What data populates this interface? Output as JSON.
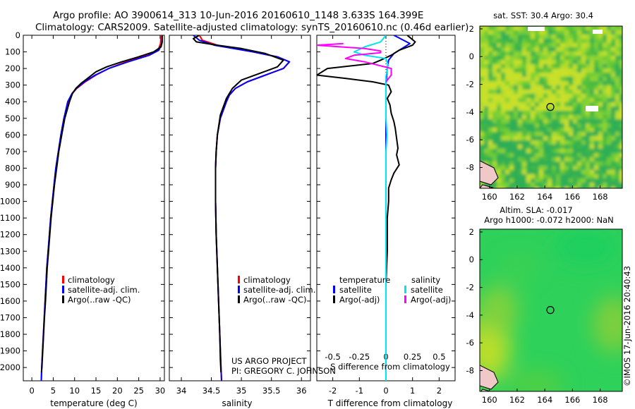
{
  "header": {
    "line1": "Argo profile: AO 3900614_313 10-Jun-2016 20160610_1148 3.633S 164.399E",
    "line2": "Climatology: CARS2009. Satellite-adjusted climatology: synTS_20160610.nc (0.46d earlier)"
  },
  "sidebar_text": "©IMOS 17-Jun-2016 20:40:43",
  "credit": {
    "line1": "US ARGO PROJECT",
    "line2": "PI: GREGORY C. JOHNSON"
  },
  "colors": {
    "climatology": "#ff0000",
    "satellite": "#0000ff",
    "argo": "#000000",
    "sat_salinity": "#00e5ee",
    "argo_salinity": "#ff00ff"
  },
  "chart_data": [
    {
      "id": "temperature",
      "type": "line",
      "xlabel": "temperature (deg C)",
      "ylabel": "",
      "xlim": [
        -2,
        31
      ],
      "ylim": [
        2080,
        0
      ],
      "xticks": [
        0,
        5,
        10,
        15,
        20,
        25,
        30
      ],
      "yticks": [
        0,
        100,
        200,
        300,
        400,
        500,
        600,
        700,
        800,
        900,
        1000,
        1100,
        1200,
        1300,
        1400,
        1500,
        1600,
        1700,
        1800,
        1900,
        2000
      ],
      "legend": {
        "position": "lower-center",
        "entries": [
          "climatology",
          "satellite-adj. clim.",
          "Argo(..raw -QC)"
        ]
      },
      "series": [
        {
          "name": "climatology",
          "color": "#ff0000",
          "points": [
            [
              30.2,
              0
            ],
            [
              30.1,
              50
            ],
            [
              29.5,
              90
            ],
            [
              27,
              120
            ],
            [
              22,
              160
            ],
            [
              18,
              200
            ],
            [
              15,
              240
            ],
            [
              12.5,
              280
            ],
            [
              10.5,
              320
            ],
            [
              9.5,
              350
            ],
            [
              8.5,
              400
            ],
            [
              7.5,
              500
            ],
            [
              6.8,
              600
            ],
            [
              6.2,
              700
            ],
            [
              5.6,
              800
            ],
            [
              5.2,
              900
            ],
            [
              4.8,
              1000
            ],
            [
              4.4,
              1100
            ],
            [
              4.1,
              1200
            ],
            [
              3.8,
              1300
            ],
            [
              3.5,
              1400
            ],
            [
              3.3,
              1500
            ],
            [
              3.1,
              1600
            ],
            [
              2.9,
              1700
            ],
            [
              2.7,
              1800
            ],
            [
              2.5,
              1900
            ],
            [
              2.3,
              2000
            ],
            [
              2.2,
              2080
            ]
          ]
        },
        {
          "name": "satellite-adj. clim.",
          "color": "#0000ff",
          "points": [
            [
              30.5,
              0
            ],
            [
              30.4,
              50
            ],
            [
              29.7,
              90
            ],
            [
              27.5,
              120
            ],
            [
              22.5,
              160
            ],
            [
              18,
              200
            ],
            [
              14.8,
              240
            ],
            [
              12.3,
              280
            ],
            [
              10.4,
              320
            ],
            [
              9.4,
              350
            ],
            [
              8.4,
              400
            ],
            [
              7.5,
              500
            ],
            [
              6.8,
              600
            ],
            [
              6.2,
              700
            ],
            [
              5.6,
              800
            ],
            [
              5.2,
              900
            ],
            [
              4.8,
              1000
            ],
            [
              4.4,
              1100
            ],
            [
              4.1,
              1200
            ],
            [
              3.8,
              1300
            ],
            [
              3.5,
              1400
            ],
            [
              3.3,
              1500
            ],
            [
              3.1,
              1600
            ],
            [
              2.9,
              1700
            ],
            [
              2.7,
              1800
            ],
            [
              2.5,
              1900
            ],
            [
              2.3,
              2000
            ],
            [
              2.2,
              2080
            ]
          ]
        },
        {
          "name": "Argo(..raw -QC)",
          "color": "#000000",
          "points": [
            [
              30.5,
              0
            ],
            [
              30.5,
              40
            ],
            [
              30.2,
              70
            ],
            [
              28.5,
              100
            ],
            [
              25,
              130
            ],
            [
              21,
              160
            ],
            [
              17.5,
              190
            ],
            [
              15,
              220
            ],
            [
              13,
              260
            ],
            [
              11.5,
              290
            ],
            [
              10.3,
              320
            ],
            [
              9.5,
              350
            ],
            [
              8.8,
              400
            ],
            [
              7.7,
              500
            ],
            [
              7,
              600
            ],
            [
              6.3,
              700
            ],
            [
              5.8,
              800
            ],
            [
              5.3,
              900
            ],
            [
              4.9,
              1000
            ],
            [
              4.5,
              1100
            ],
            [
              4.2,
              1200
            ],
            [
              3.9,
              1300
            ],
            [
              3.6,
              1400
            ],
            [
              3.4,
              1500
            ],
            [
              3.2,
              1600
            ],
            [
              2.95,
              1700
            ],
            [
              2.75,
              1800
            ],
            [
              2.55,
              1900
            ],
            [
              2.35,
              2000
            ],
            [
              2.25,
              2030
            ]
          ]
        }
      ]
    },
    {
      "id": "salinity",
      "type": "line",
      "xlabel": "salinity",
      "ylabel": "",
      "xlim": [
        33.8,
        36.15
      ],
      "ylim": [
        2080,
        0
      ],
      "xticks": [
        34,
        34.5,
        35,
        35.5,
        36
      ],
      "legend": {
        "position": "lower-center",
        "entries": [
          "climatology",
          "satellite-adj. clim.",
          "Argo(..raw -QC)"
        ]
      },
      "series": [
        {
          "name": "climatology",
          "color": "#ff0000",
          "points": [
            [
              34.3,
              0
            ],
            [
              34.35,
              30
            ],
            [
              34.6,
              60
            ],
            [
              35.2,
              100
            ],
            [
              35.6,
              130
            ],
            [
              35.8,
              160
            ],
            [
              35.7,
              200
            ],
            [
              35.4,
              240
            ],
            [
              35.1,
              280
            ],
            [
              34.9,
              320
            ],
            [
              34.8,
              360
            ],
            [
              34.75,
              400
            ],
            [
              34.65,
              500
            ],
            [
              34.6,
              600
            ],
            [
              34.58,
              700
            ],
            [
              34.57,
              800
            ],
            [
              34.57,
              1000
            ],
            [
              34.58,
              1200
            ],
            [
              34.6,
              1400
            ],
            [
              34.62,
              1600
            ],
            [
              34.64,
              1800
            ],
            [
              34.66,
              2000
            ],
            [
              34.67,
              2080
            ]
          ]
        },
        {
          "name": "satellite-adj. clim.",
          "color": "#0000ff",
          "points": [
            [
              34.2,
              0
            ],
            [
              34.3,
              30
            ],
            [
              34.55,
              60
            ],
            [
              35.2,
              100
            ],
            [
              35.6,
              130
            ],
            [
              35.8,
              160
            ],
            [
              35.7,
              200
            ],
            [
              35.4,
              240
            ],
            [
              35.1,
              280
            ],
            [
              34.9,
              320
            ],
            [
              34.8,
              360
            ],
            [
              34.75,
              400
            ],
            [
              34.65,
              500
            ],
            [
              34.6,
              600
            ],
            [
              34.58,
              700
            ],
            [
              34.57,
              800
            ],
            [
              34.57,
              1000
            ],
            [
              34.58,
              1200
            ],
            [
              34.6,
              1400
            ],
            [
              34.62,
              1600
            ],
            [
              34.64,
              1800
            ],
            [
              34.66,
              2000
            ],
            [
              34.67,
              2080
            ]
          ]
        },
        {
          "name": "Argo(..raw -QC)",
          "color": "#000000",
          "points": [
            [
              34.3,
              0
            ],
            [
              34.2,
              20
            ],
            [
              34.25,
              40
            ],
            [
              34.6,
              60
            ],
            [
              35.0,
              80
            ],
            [
              35.4,
              110
            ],
            [
              35.7,
              150
            ],
            [
              35.6,
              190
            ],
            [
              35.3,
              230
            ],
            [
              35.0,
              270
            ],
            [
              34.85,
              320
            ],
            [
              34.75,
              380
            ],
            [
              34.65,
              480
            ],
            [
              34.6,
              600
            ],
            [
              34.58,
              700
            ],
            [
              34.57,
              800
            ],
            [
              34.57,
              1000
            ],
            [
              34.58,
              1200
            ],
            [
              34.6,
              1400
            ],
            [
              34.62,
              1600
            ],
            [
              34.64,
              1800
            ],
            [
              34.65,
              1950
            ],
            [
              34.66,
              2030
            ]
          ]
        }
      ]
    },
    {
      "id": "difference",
      "type": "line",
      "xlabel": "T difference from climatology",
      "xlabel_top": "S difference from climatology",
      "xlim_T": [
        -2.6,
        2.6
      ],
      "xlim_S": [
        -0.65,
        0.65
      ],
      "ylim": [
        2080,
        0
      ],
      "xticks_T": [
        -2,
        -1,
        0,
        1,
        2
      ],
      "xticks_S": [
        "-0.5",
        "-0.25",
        "0",
        "0.25",
        "0.5"
      ],
      "legend": {
        "position": "lower-center",
        "header_T": "temperature",
        "header_S": "salinity",
        "entries": [
          "satellite",
          "Argo(-adj)",
          "satellite",
          "Argo(-adj)"
        ]
      },
      "series": [
        {
          "name": "satellite",
          "quantity": "temperature",
          "color": "#0000ff",
          "points": [
            [
              0.3,
              0
            ],
            [
              0.9,
              50
            ],
            [
              0.6,
              80
            ],
            [
              0.3,
              110
            ],
            [
              0.1,
              150
            ],
            [
              0.05,
              200
            ],
            [
              0,
              300
            ],
            [
              0,
              600
            ],
            [
              0,
              1000
            ],
            [
              0,
              2080
            ]
          ]
        },
        {
          "name": "Argo(-adj)",
          "quantity": "temperature",
          "color": "#000000",
          "points": [
            [
              0.8,
              0
            ],
            [
              1.1,
              40
            ],
            [
              1.0,
              60
            ],
            [
              0.5,
              90
            ],
            [
              0.2,
              120
            ],
            [
              -0.2,
              150
            ],
            [
              -0.5,
              170
            ],
            [
              -2.2,
              200
            ],
            [
              -2.6,
              240
            ],
            [
              -1.5,
              260
            ],
            [
              -0.5,
              280
            ],
            [
              0.1,
              300
            ],
            [
              0.2,
              340
            ],
            [
              0.05,
              380
            ],
            [
              0.15,
              420
            ],
            [
              0.2,
              470
            ],
            [
              0.3,
              520
            ],
            [
              0.35,
              560
            ],
            [
              0.4,
              620
            ],
            [
              0.45,
              680
            ],
            [
              0.4,
              720
            ],
            [
              0.5,
              780
            ],
            [
              0.3,
              830
            ],
            [
              0.2,
              870
            ],
            [
              0.1,
              920
            ],
            [
              0.1,
              1000
            ],
            [
              0.05,
              1100
            ],
            [
              0.05,
              1300
            ],
            [
              0,
              1500
            ],
            [
              0,
              1800
            ],
            [
              0,
              2030
            ]
          ]
        },
        {
          "name": "satellite",
          "quantity": "salinity",
          "color": "#00e5ee",
          "points": [
            [
              0,
              0
            ],
            [
              -0.05,
              40
            ],
            [
              -0.2,
              70
            ],
            [
              -0.3,
              100
            ],
            [
              -0.2,
              120
            ],
            [
              0,
              140
            ],
            [
              0.02,
              180
            ],
            [
              0,
              250
            ],
            [
              0,
              400
            ],
            [
              0,
              500
            ],
            [
              0.01,
              600
            ],
            [
              0,
              700
            ],
            [
              0,
              1000
            ],
            [
              0,
              2080
            ]
          ]
        },
        {
          "name": "Argo(-adj)",
          "quantity": "salinity",
          "color": "#ff00ff",
          "points": [
            [
              -0.4,
              50
            ],
            [
              -0.65,
              60
            ],
            [
              -0.2,
              80
            ],
            [
              -0.05,
              95
            ],
            [
              -0.05,
              105
            ],
            [
              -0.3,
              120
            ],
            [
              -0.38,
              140
            ],
            [
              -0.2,
              160
            ],
            [
              0.05,
              200
            ],
            [
              0.05,
              240
            ],
            [
              0,
              280
            ]
          ]
        }
      ]
    },
    {
      "id": "sst_map",
      "type": "heatmap",
      "title": "sat. SST: 30.4  Argo: 30.4",
      "xlim": [
        159.3,
        169.6
      ],
      "ylim": [
        -9.5,
        2.2
      ],
      "xticks": [
        160,
        162,
        164,
        166,
        168
      ],
      "yticks": [
        2,
        0,
        -2,
        -4,
        -6,
        -8
      ],
      "marker": {
        "lon": 164.4,
        "lat": -3.63
      }
    },
    {
      "id": "sla_map",
      "type": "heatmap",
      "title_line1": "Altim. SLA: -0.017",
      "title_line2": "Argo h1000: -0.072 h2000: NaN",
      "xlim": [
        159.3,
        169.6
      ],
      "ylim": [
        -9.5,
        2.2
      ],
      "xticks": [
        160,
        162,
        164,
        166,
        168
      ],
      "yticks": [
        2,
        0,
        -2,
        -4,
        -6,
        -8
      ],
      "marker": {
        "lon": 164.4,
        "lat": -3.63
      }
    }
  ]
}
